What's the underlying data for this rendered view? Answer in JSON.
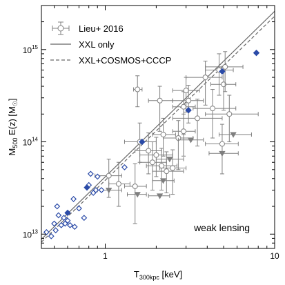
{
  "chart_data": {
    "type": "scatter",
    "xscale": "log",
    "yscale": "log",
    "xlim": [
      0.42,
      10
    ],
    "ylim": [
      7000000000000.0,
      3000000000000000.0
    ],
    "xlabel_main": "T",
    "xlabel_sub": "300kpc",
    "xlabel_unit": " [keV]",
    "ylabel_main": "M",
    "ylabel_sub": "500",
    "ylabel_unit": " E(z) [M",
    "ylabel_close": "]",
    "xticks": [
      {
        "value": 1,
        "label": "1"
      },
      {
        "value": 10,
        "label": "10"
      }
    ],
    "yticks": [
      {
        "value": 10000000000000.0,
        "base": "10",
        "exp": "13"
      },
      {
        "value": 100000000000000.0,
        "base": "10",
        "exp": "14"
      },
      {
        "value": 1000000000000000.0,
        "base": "10",
        "exp": "15"
      }
    ],
    "legend": {
      "placement": "top-left",
      "entries": [
        {
          "label": "Lieu+ 2016",
          "style": "errorbar-circle"
        },
        {
          "label": "XXL only",
          "style": "solid-line"
        },
        {
          "label": "XXL+COSMOS+CCCP",
          "style": "dashed-line"
        }
      ]
    },
    "annotation": "weak lensing",
    "fits": [
      {
        "style": "solid",
        "x": [
          0.42,
          10
        ],
        "y": [
          8800000000000.0,
          2600000000000000.0
        ]
      },
      {
        "style": "dashed",
        "x": [
          0.42,
          10
        ],
        "y": [
          8200000000000.0,
          2300000000000000.0
        ]
      }
    ],
    "lieu_points": [
      {
        "x": 1.05,
        "y": 43000000000000.0,
        "xerr": [
          0.18,
          0.2
        ],
        "yerr": [
          18000000000000.0,
          22000000000000.0
        ]
      },
      {
        "x": 1.2,
        "y": 35000000000000.0,
        "xerr": [
          0.15,
          0.2
        ],
        "yerr": [
          15000000000000.0,
          25000000000000.0
        ]
      },
      {
        "x": 1.5,
        "y": 33000000000000.0,
        "xerr": [
          0.2,
          0.25
        ],
        "yerr": [
          20000000000000.0,
          25000000000000.0
        ]
      },
      {
        "x": 1.55,
        "y": 370000000000000.0,
        "xerr": [
          0.08,
          0.1
        ],
        "yerr": [
          130000000000000.0,
          150000000000000.0
        ]
      },
      {
        "x": 1.6,
        "y": 100000000000000.0,
        "xerr": [
          0.3,
          0.4
        ],
        "yerr": [
          40000000000000.0,
          60000000000000.0
        ]
      },
      {
        "x": 1.8,
        "y": 80000000000000.0,
        "xerr": [
          0.3,
          0.35
        ],
        "yerr": [
          35000000000000.0,
          45000000000000.0
        ]
      },
      {
        "x": 1.9,
        "y": 60000000000000.0,
        "xerr": [
          0.3,
          0.4
        ],
        "yerr": [
          30000000000000.0,
          40000000000000.0
        ]
      },
      {
        "x": 2.0,
        "y": 72000000000000.0,
        "xerr": [
          0.4,
          0.5
        ],
        "yerr": [
          30000000000000.0,
          40000000000000.0
        ]
      },
      {
        "x": 2.1,
        "y": 280000000000000.0,
        "xerr": [
          0.3,
          0.4
        ],
        "yerr": [
          150000000000000.0,
          120000000000000.0
        ]
      },
      {
        "x": 2.15,
        "y": 55000000000000.0,
        "xerr": [
          0.4,
          0.5
        ],
        "yerr": [
          25000000000000.0,
          30000000000000.0
        ]
      },
      {
        "x": 2.3,
        "y": 48000000000000.0,
        "xerr": [
          0.4,
          0.6
        ],
        "yerr": [
          20000000000000.0,
          30000000000000.0
        ]
      },
      {
        "x": 2.5,
        "y": 52000000000000.0,
        "xerr": [
          0.4,
          0.5
        ],
        "yerr": [
          25000000000000.0,
          30000000000000.0
        ]
      },
      {
        "x": 2.7,
        "y": 110000000000000.0,
        "xerr": [
          0.5,
          0.6
        ],
        "yerr": [
          60000000000000.0,
          60000000000000.0
        ]
      },
      {
        "x": 2.9,
        "y": 240000000000000.0,
        "xerr": [
          0.4,
          0.5
        ],
        "yerr": [
          120000000000000.0,
          110000000000000.0
        ]
      },
      {
        "x": 3.0,
        "y": 360000000000000.0,
        "xerr": [
          0.5,
          0.6
        ],
        "yerr": [
          150000000000000.0,
          140000000000000.0
        ]
      },
      {
        "x": 3.1,
        "y": 280000000000000.0,
        "xerr": [
          0.6,
          0.7
        ],
        "yerr": [
          120000000000000.0,
          130000000000000.0
        ]
      },
      {
        "x": 3.5,
        "y": 180000000000000.0,
        "xerr": [
          1.0,
          1.4
        ],
        "yerr": [
          90000000000000.0,
          110000000000000.0
        ]
      },
      {
        "x": 3.9,
        "y": 500000000000000.0,
        "xerr": [
          0.9,
          1.0
        ],
        "yerr": [
          250000000000000.0,
          250000000000000.0
        ]
      },
      {
        "x": 4.3,
        "y": 230000000000000.0,
        "xerr": [
          1.0,
          1.6
        ],
        "yerr": [
          120000000000000.0,
          140000000000000.0
        ]
      },
      {
        "x": 4.7,
        "y": 600000000000000.0,
        "xerr": [
          0.8,
          1.0
        ],
        "yerr": [
          280000000000000.0,
          300000000000000.0
        ]
      },
      {
        "x": 4.9,
        "y": 95000000000000.0,
        "xerr": [
          1.0,
          1.2
        ],
        "yerr": [
          50000000000000.0,
          60000000000000.0
        ]
      },
      {
        "x": 5.0,
        "y": 420000000000000.0,
        "xerr": [
          0.8,
          0.9
        ],
        "yerr": [
          200000000000000.0,
          240000000000000.0
        ]
      },
      {
        "x": 5.1,
        "y": 650000000000000.0,
        "xerr": [
          1.2,
          1.4
        ],
        "yerr": [
          300000000000000.0,
          300000000000000.0
        ]
      },
      {
        "x": 5.4,
        "y": 200000000000000.0,
        "xerr": [
          1.5,
          2.6
        ],
        "yerr": [
          100000000000000.0,
          120000000000000.0
        ]
      },
      {
        "x": 2.9,
        "y": 130000000000000.0,
        "xerr": [
          0.4,
          0.5
        ],
        "yerr": [
          60000000000000.0,
          70000000000000.0
        ]
      },
      {
        "x": 2.2,
        "y": 120000000000000.0,
        "xerr": [
          0.3,
          0.4
        ],
        "yerr": [
          50000000000000.0,
          60000000000000.0
        ]
      }
    ],
    "upper_limits": [
      {
        "x": 1.05,
        "y": 30000000000000.0,
        "xerr": [
          0.15,
          0.2
        ]
      },
      {
        "x": 1.55,
        "y": 27000000000000.0,
        "xerr": [
          0.2,
          0.2
        ]
      },
      {
        "x": 2.1,
        "y": 26000000000000.0,
        "xerr": [
          0.3,
          0.3
        ]
      },
      {
        "x": 2.2,
        "y": 38000000000000.0,
        "xerr": [
          0.3,
          0.35
        ]
      },
      {
        "x": 3.2,
        "y": 105000000000000.0,
        "xerr": [
          0.5,
          0.6
        ]
      },
      {
        "x": 4.9,
        "y": 75000000000000.0,
        "xerr": [
          0.8,
          1.2
        ]
      },
      {
        "x": 5.7,
        "y": 120000000000000.0,
        "xerr": [
          1.0,
          1.6
        ]
      },
      {
        "x": 2.4,
        "y": 65000000000000.0,
        "xerr": [
          0.4,
          0.5
        ]
      }
    ],
    "open_diamonds": [
      {
        "x": 0.45,
        "y": 10500000000000.0
      },
      {
        "x": 0.48,
        "y": 9500000000000.0
      },
      {
        "x": 0.5,
        "y": 13000000000000.0
      },
      {
        "x": 0.51,
        "y": 11000000000000.0
      },
      {
        "x": 0.52,
        "y": 20000000000000.0
      },
      {
        "x": 0.53,
        "y": 16000000000000.0
      },
      {
        "x": 0.55,
        "y": 12500000000000.0
      },
      {
        "x": 0.57,
        "y": 15000000000000.0
      },
      {
        "x": 0.58,
        "y": 13000000000000.0
      },
      {
        "x": 0.6,
        "y": 14000000000000.0
      },
      {
        "x": 0.62,
        "y": 12500000000000.0
      },
      {
        "x": 0.65,
        "y": 24000000000000.0
      },
      {
        "x": 0.66,
        "y": 12000000000000.0
      },
      {
        "x": 0.7,
        "y": 19000000000000.0
      },
      {
        "x": 0.75,
        "y": 15000000000000.0
      },
      {
        "x": 0.8,
        "y": 34000000000000.0
      },
      {
        "x": 0.85,
        "y": 28000000000000.0
      },
      {
        "x": 0.88,
        "y": 30000000000000.0
      },
      {
        "x": 0.9,
        "y": 42000000000000.0
      },
      {
        "x": 0.95,
        "y": 30000000000000.0
      },
      {
        "x": 0.82,
        "y": 45000000000000.0
      },
      {
        "x": 1.3,
        "y": 53000000000000.0
      }
    ],
    "filled_diamonds": [
      {
        "x": 0.6,
        "y": 17000000000000.0
      },
      {
        "x": 0.78,
        "y": 32000000000000.0
      },
      {
        "x": 1.65,
        "y": 100000000000000.0
      },
      {
        "x": 3.1,
        "y": 220000000000000.0
      },
      {
        "x": 4.9,
        "y": 580000000000000.0
      },
      {
        "x": 7.8,
        "y": 920000000000000.0
      }
    ],
    "colors": {
      "lieu": "#7f7f7f",
      "fit": "#666666",
      "diamond": "#2b4ba8"
    }
  }
}
